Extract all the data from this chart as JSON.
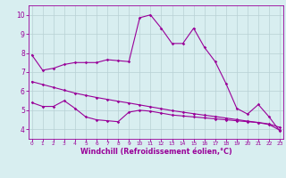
{
  "line1_x": [
    0,
    1,
    2,
    3,
    4,
    5,
    6,
    7,
    8,
    9,
    10,
    11,
    12,
    13,
    14,
    15,
    16,
    17,
    18,
    19,
    20,
    21,
    22,
    23
  ],
  "line1_y": [
    7.9,
    7.1,
    7.2,
    7.4,
    7.5,
    7.5,
    7.5,
    7.65,
    7.6,
    7.55,
    9.85,
    10.0,
    9.3,
    8.5,
    8.5,
    9.3,
    8.3,
    7.55,
    6.4,
    5.1,
    4.8,
    5.3,
    4.65,
    3.9
  ],
  "line2_x": [
    0,
    1,
    2,
    3,
    4,
    5,
    6,
    7,
    8,
    9,
    10,
    11,
    12,
    13,
    14,
    15,
    16,
    17,
    18,
    19,
    20,
    21,
    22,
    23
  ],
  "line2_y": [
    6.5,
    6.35,
    6.2,
    6.05,
    5.9,
    5.78,
    5.67,
    5.57,
    5.47,
    5.38,
    5.28,
    5.18,
    5.08,
    4.98,
    4.9,
    4.82,
    4.74,
    4.67,
    4.59,
    4.51,
    4.43,
    4.36,
    4.28,
    4.1
  ],
  "line3_x": [
    0,
    1,
    2,
    3,
    4,
    5,
    6,
    7,
    8,
    9,
    10,
    11,
    12,
    13,
    14,
    15,
    16,
    17,
    18,
    19,
    20,
    21,
    22,
    23
  ],
  "line3_y": [
    5.4,
    5.2,
    5.2,
    5.5,
    5.1,
    4.65,
    4.5,
    4.45,
    4.4,
    4.9,
    5.0,
    4.95,
    4.85,
    4.75,
    4.7,
    4.65,
    4.6,
    4.55,
    4.5,
    4.45,
    4.4,
    4.35,
    4.25,
    3.95
  ],
  "bg_color": "#d8eef0",
  "line_color": "#990099",
  "grid_color": "#b8d0d4",
  "xlim": [
    -0.3,
    23.3
  ],
  "ylim": [
    3.5,
    10.5
  ],
  "yticks": [
    4,
    5,
    6,
    7,
    8,
    9,
    10
  ],
  "xticks": [
    0,
    1,
    2,
    3,
    4,
    5,
    6,
    7,
    8,
    9,
    10,
    11,
    12,
    13,
    14,
    15,
    16,
    17,
    18,
    19,
    20,
    21,
    22,
    23
  ],
  "xlabel": "Windchill (Refroidissement éolien,°C)",
  "xlabel_color": "#990099",
  "tick_color": "#990099",
  "xlabel_fontsize": 5.8,
  "xtick_fontsize": 4.2,
  "ytick_fontsize": 5.5
}
